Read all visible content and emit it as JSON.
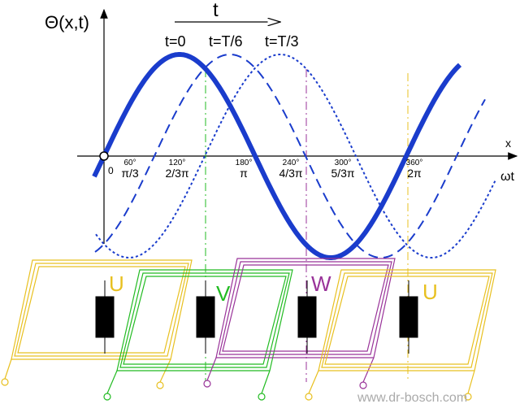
{
  "axis_label_y": "Θ(x,t)",
  "time_arrow_label": "t",
  "curve_labels": [
    "t=0",
    "t=T/6",
    "t=T/3"
  ],
  "axis_label_x": "x",
  "axis_label_wt": "ωt",
  "origin_label": "0",
  "tick_labels": [
    {
      "degree": "60°",
      "radian": "π/3"
    },
    {
      "degree": "120°",
      "radian": "2/3π"
    },
    {
      "degree": "180°",
      "radian": "π"
    },
    {
      "degree": "240°",
      "radian": "4/3π"
    },
    {
      "degree": "300°",
      "radian": "5/3π"
    },
    {
      "degree": "360°",
      "radian": "2π"
    }
  ],
  "phase_labels": [
    "U",
    "V",
    "W",
    "U"
  ],
  "watermark": "www.dr-bosch.com"
}
